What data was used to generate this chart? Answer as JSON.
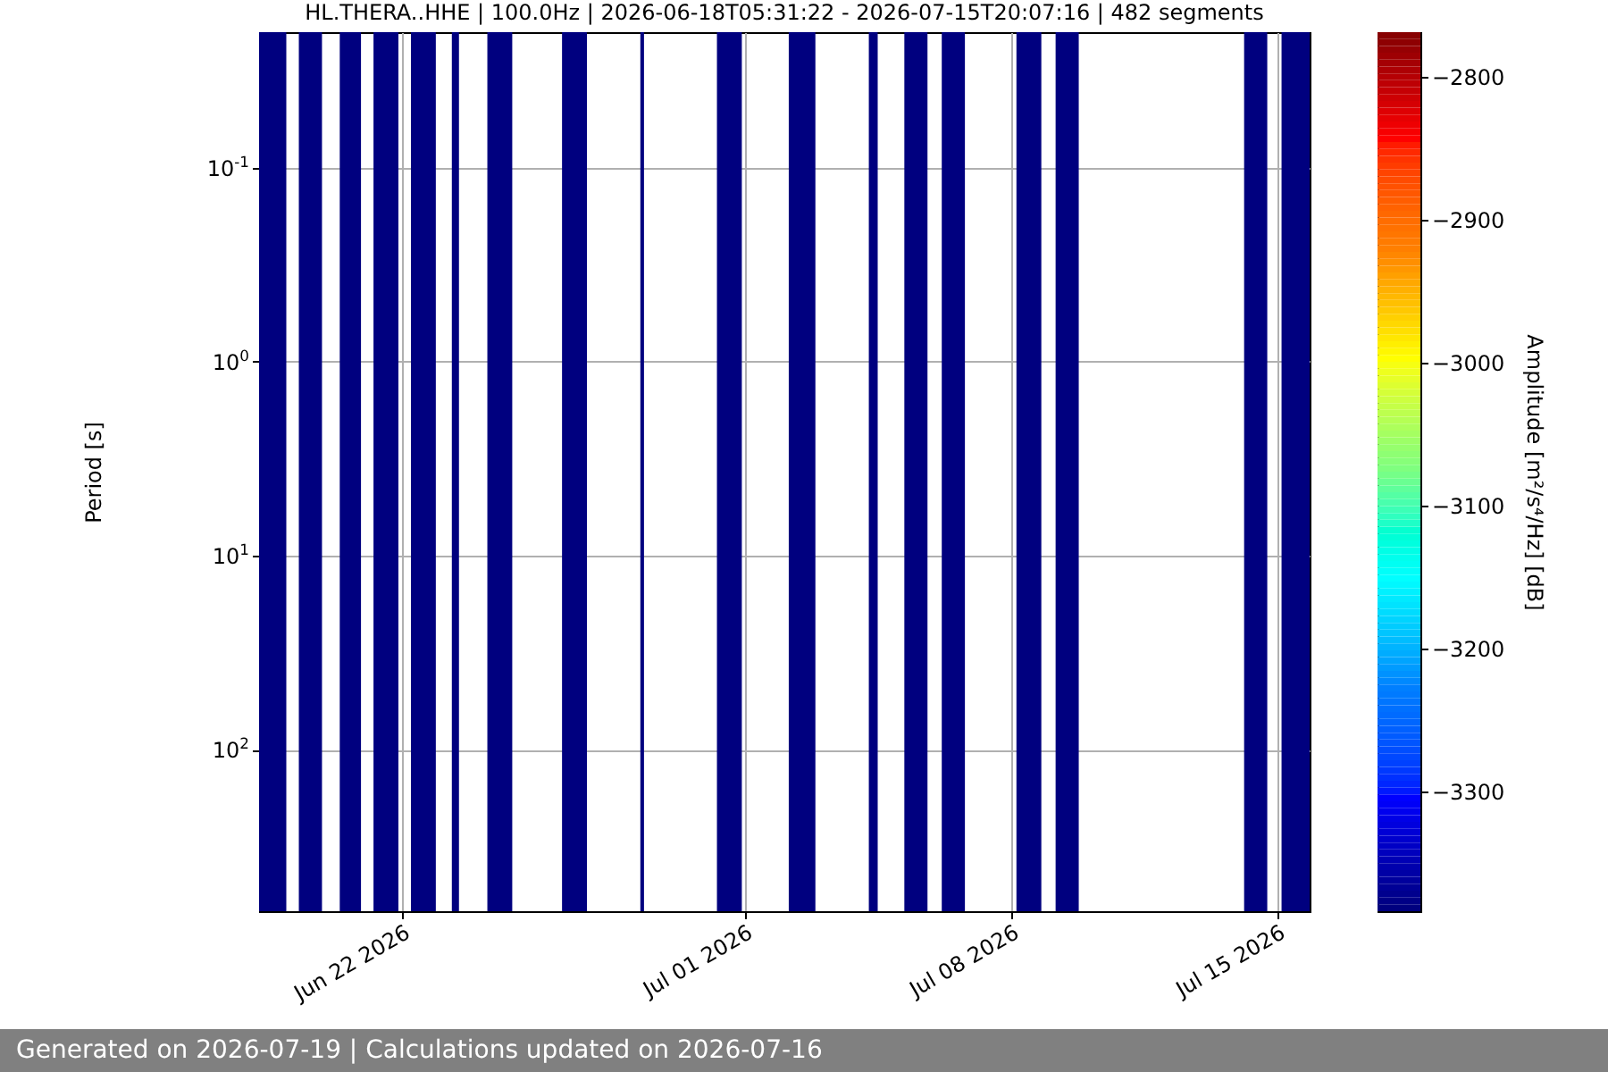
{
  "chart_data": {
    "type": "heatmap",
    "title": "HL.THERA..HHE | 100.0Hz | 2026-06-18T05:31:22 - 2026-07-15T20:07:16 | 482 segments",
    "ylabel": "Period [s]",
    "clabel": "Amplitude [m²/s⁴/Hz] [dB]",
    "annotations": [
      "Generated on 2026-07-19 | Calculations updated on 2026-07-16"
    ],
    "xlim": [
      "2026-06-18T05:31",
      "2026-07-15T20:07"
    ],
    "xticks": [
      {
        "value": "2026-06-22",
        "label": "Jun 22 2026"
      },
      {
        "value": "2026-07-01",
        "label": "Jul 01 2026"
      },
      {
        "value": "2026-07-08",
        "label": "Jul 08 2026"
      },
      {
        "value": "2026-07-15",
        "label": "Jul 15 2026"
      }
    ],
    "log": "y",
    "ylim": [
      680,
      0.02
    ],
    "yticks": [
      {
        "value": 0.1,
        "label": "10$^{-1}$"
      },
      {
        "value": 1,
        "label": "10$^{0}$"
      },
      {
        "value": 10,
        "label": "10$^{1}$"
      },
      {
        "value": 100,
        "label": "10$^{2}$"
      }
    ],
    "clim": [
      -3384,
      -2769
    ],
    "cticks": [
      -3300,
      -3200,
      -3100,
      -3000,
      -2900,
      -2800
    ],
    "grid": true,
    "bands": [
      {
        "axis": "x",
        "from": "2026-06-18T05:31",
        "to": "2026-06-18T22:42",
        "color": "#00007f"
      },
      {
        "axis": "x",
        "from": "2026-06-19T06:36",
        "to": "2026-06-19T21:12",
        "color": "#00007f"
      },
      {
        "axis": "x",
        "from": "2026-06-20T08:24",
        "to": "2026-06-20T21:48",
        "color": "#00007f"
      },
      {
        "axis": "x",
        "from": "2026-06-21T05:42",
        "to": "2026-06-21T21:24",
        "color": "#00007f"
      },
      {
        "axis": "x",
        "from": "2026-06-22T05:18",
        "to": "2026-06-22T21:00",
        "color": "#00007f"
      },
      {
        "axis": "x",
        "from": "2026-06-23T07:06",
        "to": "2026-06-23T11:36",
        "color": "#00007f"
      },
      {
        "axis": "x",
        "from": "2026-06-24T05:30",
        "to": "2026-06-24T21:12",
        "color": "#00007f"
      },
      {
        "axis": "x",
        "from": "2026-06-26T04:36",
        "to": "2026-06-26T20:18",
        "color": "#00007f"
      },
      {
        "axis": "x",
        "from": "2026-06-28T06:00",
        "to": "2026-06-28T08:18",
        "color": "#00007f"
      },
      {
        "axis": "x",
        "from": "2026-06-30T06:18",
        "to": "2026-06-30T22:00",
        "color": "#00007f"
      },
      {
        "axis": "x",
        "from": "2026-07-02T03:36",
        "to": "2026-07-02T20:24",
        "color": "#00007f"
      },
      {
        "axis": "x",
        "from": "2026-07-04T06:06",
        "to": "2026-07-04T11:42",
        "color": "#00007f"
      },
      {
        "axis": "x",
        "from": "2026-07-05T04:30",
        "to": "2026-07-05T19:06",
        "color": "#00007f"
      },
      {
        "axis": "x",
        "from": "2026-07-06T04:06",
        "to": "2026-07-06T18:42",
        "color": "#00007f"
      },
      {
        "axis": "x",
        "from": "2026-07-08T03:12",
        "to": "2026-07-08T18:54",
        "color": "#00007f"
      },
      {
        "axis": "x",
        "from": "2026-07-09T03:54",
        "to": "2026-07-09T18:30",
        "color": "#00007f"
      },
      {
        "axis": "x",
        "from": "2026-07-14T02:48",
        "to": "2026-07-14T17:24",
        "color": "#00007f"
      },
      {
        "axis": "x",
        "from": "2026-07-15T02:24",
        "to": "2026-07-15T20:07",
        "color": "#00007f"
      }
    ]
  }
}
